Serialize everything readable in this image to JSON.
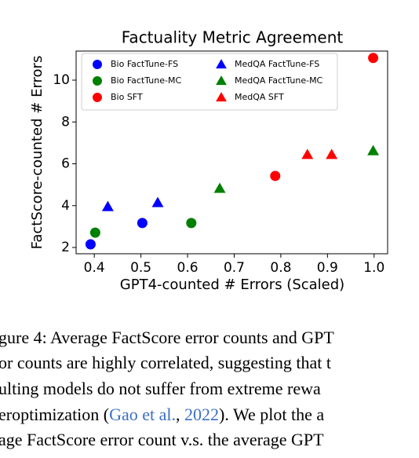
{
  "chart_data": {
    "type": "scatter",
    "title": "Factuality Metric Agreement",
    "x_label": "GPT4-counted # Errors (Scaled)",
    "y_label": "FactScore-counted # Errors",
    "xlim": [
      0.361,
      1.029
    ],
    "ylim": [
      1.7,
      11.39
    ],
    "xticks": [
      0.4,
      0.5,
      0.6,
      0.7,
      0.8,
      0.9,
      {
        "value": 1,
        "label": "1.0"
      }
    ],
    "yticks": [
      2,
      4,
      6,
      8,
      10
    ],
    "legend": "upper left",
    "series": [
      {
        "name": "Bio FactTune-FS",
        "color": "#0000ff",
        "marker": "circle",
        "x": [
          0.392,
          0.503
        ],
        "values": [
          2.15,
          3.17
        ]
      },
      {
        "name": "Bio FactTune-MC",
        "color": "#008000",
        "marker": "circle",
        "x": [
          0.402,
          0.608
        ],
        "values": [
          2.71,
          3.17
        ]
      },
      {
        "name": "Bio SFT",
        "color": "#ff0000",
        "marker": "circle",
        "x": [
          0.788,
          0.998
        ],
        "values": [
          5.42,
          11.06
        ]
      },
      {
        "name": "MedQA FactTune-FS",
        "color": "#0000ff",
        "marker": "triangle",
        "x": [
          0.429,
          0.536
        ],
        "values": [
          3.95,
          4.14
        ]
      },
      {
        "name": "MedQA FactTune-MC",
        "color": "#008000",
        "marker": "triangle",
        "x": [
          0.669,
          0.998
        ],
        "values": [
          4.82,
          6.62
        ]
      },
      {
        "name": "MedQA SFT",
        "color": "#ff0000",
        "marker": "triangle",
        "x": [
          0.857,
          0.909
        ],
        "values": [
          6.44,
          6.44
        ]
      }
    ]
  },
  "caption": {
    "lines": [
      "gure 4:  Average FactScore error counts and GPT",
      "or counts are highly correlated, suggesting that t",
      "ulting  models  do  not  suffer  from  extreme  rewa"
    ],
    "line4": [
      "eroptimization (",
      "Gao et al.",
      ", ",
      "2022",
      ").  We plot the a"
    ],
    "line5": "age FactScore error count v.s.  the average GPT"
  }
}
